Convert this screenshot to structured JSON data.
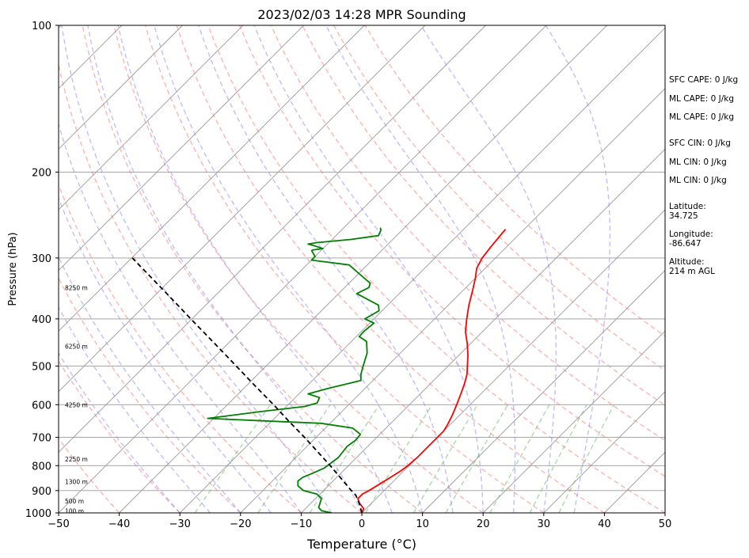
{
  "chart_data": {
    "type": "line",
    "title": "2023/02/03 14:28 MPR Sounding",
    "xlabel": "Temperature (°C)",
    "ylabel": "Pressure (hPa)",
    "xlim": [
      -50,
      50
    ],
    "ylim": [
      1000,
      100
    ],
    "y_scale": "log",
    "grid": true,
    "x_ticks": [
      "−50",
      "−40",
      "−30",
      "−20",
      "−10",
      "0",
      "10",
      "20",
      "30",
      "40",
      "50"
    ],
    "x_tick_values": [
      -50,
      -40,
      -30,
      -20,
      -10,
      0,
      10,
      20,
      30,
      40,
      50
    ],
    "y_ticks": [
      "100",
      "200",
      "300",
      "400",
      "500",
      "600",
      "700",
      "800",
      "900",
      "1000"
    ],
    "y_tick_values": [
      100,
      200,
      300,
      400,
      500,
      600,
      700,
      800,
      900,
      1000
    ],
    "skew": "skew-T log-p, isotherms inclined 45°",
    "series": [
      {
        "role": "temperature",
        "color": "#ff0000",
        "points": [
          [
            0,
            1000
          ],
          [
            -0.4,
            980
          ],
          [
            -2.0,
            955
          ],
          [
            -3.0,
            935
          ],
          [
            -3.0,
            915
          ],
          [
            -2.5,
            900
          ],
          [
            -2.0,
            880
          ],
          [
            -1.5,
            860
          ],
          [
            -1.0,
            840
          ],
          [
            -0.5,
            820
          ],
          [
            -0.2,
            800
          ],
          [
            0,
            770
          ],
          [
            0,
            740
          ],
          [
            0,
            700
          ],
          [
            0,
            680
          ],
          [
            -0.4,
            660
          ],
          [
            -1.2,
            630
          ],
          [
            -2.2,
            600
          ],
          [
            -3.3,
            570
          ],
          [
            -4.3,
            545
          ],
          [
            -5.5,
            520
          ],
          [
            -6.8,
            500
          ],
          [
            -8.5,
            475
          ],
          [
            -10.5,
            450
          ],
          [
            -12.8,
            425
          ],
          [
            -14.7,
            400
          ],
          [
            -16.6,
            375
          ],
          [
            -18.4,
            350
          ],
          [
            -20.0,
            330
          ],
          [
            -21.4,
            315
          ],
          [
            -22.2,
            300
          ],
          [
            -22.6,
            285
          ],
          [
            -22.8,
            275
          ],
          [
            -23.1,
            262
          ]
        ]
      },
      {
        "role": "dewpoint",
        "color": "#008000",
        "points": [
          [
            -5.0,
            1000
          ],
          [
            -7.0,
            990
          ],
          [
            -8.0,
            975
          ],
          [
            -8.5,
            955
          ],
          [
            -9.0,
            935
          ],
          [
            -10.5,
            915
          ],
          [
            -13.3,
            900
          ],
          [
            -15.0,
            880
          ],
          [
            -15.8,
            860
          ],
          [
            -15.6,
            845
          ],
          [
            -14.7,
            830
          ],
          [
            -13.6,
            810
          ],
          [
            -13.3,
            790
          ],
          [
            -13.0,
            770
          ],
          [
            -13.2,
            750
          ],
          [
            -13.4,
            730
          ],
          [
            -13.0,
            710
          ],
          [
            -13.2,
            690
          ],
          [
            -15.5,
            670
          ],
          [
            -21.5,
            655
          ],
          [
            -28.0,
            650
          ],
          [
            -41.0,
            640
          ],
          [
            -33.5,
            620
          ],
          [
            -27.0,
            605
          ],
          [
            -25.5,
            595
          ],
          [
            -26.0,
            580
          ],
          [
            -28.5,
            570
          ],
          [
            -26.0,
            555
          ],
          [
            -22.0,
            535
          ],
          [
            -23.0,
            520
          ],
          [
            -24.0,
            500
          ],
          [
            -25.5,
            470
          ],
          [
            -27.5,
            445
          ],
          [
            -29.5,
            435
          ],
          [
            -29.6,
            425
          ],
          [
            -29.3,
            408
          ],
          [
            -31.5,
            400
          ],
          [
            -30.5,
            385
          ],
          [
            -31.5,
            375
          ],
          [
            -37.0,
            355
          ],
          [
            -36.0,
            345
          ],
          [
            -36.5,
            338
          ],
          [
            -39.0,
            327
          ],
          [
            -43.0,
            310
          ],
          [
            -50.0,
            303
          ],
          [
            -50.0,
            298
          ],
          [
            -51.5,
            290
          ],
          [
            -51.5,
            289
          ],
          [
            -50.0,
            287
          ],
          [
            -50.5,
            286
          ],
          [
            -52.0,
            283
          ],
          [
            -53.2,
            281
          ],
          [
            -52.0,
            279
          ],
          [
            -47.0,
            275
          ],
          [
            -43.0,
            270
          ],
          [
            -43.5,
            263
          ],
          [
            -44.0,
            260
          ]
        ]
      },
      {
        "role": "parcel",
        "color": "#000000",
        "style": "dashed",
        "points": [
          [
            0,
            1000
          ],
          [
            -1.8,
            960
          ],
          [
            -3.9,
            920
          ],
          [
            -5.4,
            900
          ],
          [
            -9.1,
            850
          ],
          [
            -13.0,
            800
          ],
          [
            -17.3,
            750
          ],
          [
            -21.9,
            700
          ],
          [
            -27.0,
            650
          ],
          [
            -32.4,
            600
          ],
          [
            -38.4,
            550
          ],
          [
            -44.9,
            500
          ],
          [
            -52.1,
            450
          ],
          [
            -60.2,
            400
          ],
          [
            -69.3,
            350
          ],
          [
            -79.9,
            300
          ]
        ]
      }
    ],
    "height_labels": [
      {
        "label": "100 m",
        "p": 990
      },
      {
        "label": "500 m",
        "p": 945
      },
      {
        "label": "1300 m",
        "p": 863
      },
      {
        "label": "2250 m",
        "p": 775
      },
      {
        "label": "4250 m",
        "p": 600
      },
      {
        "label": "6250 m",
        "p": 455
      },
      {
        "label": "8250 m",
        "p": 345
      }
    ],
    "dry_adiabats_theta_c": [
      -50,
      -40,
      -30,
      -20,
      -10,
      0,
      10,
      20,
      30,
      40,
      50,
      60,
      70,
      80,
      90,
      100
    ],
    "moist_adiabats_start_c": [
      -30,
      -25,
      -20,
      -15,
      -10,
      -5,
      0,
      5,
      10,
      15,
      20,
      25,
      30,
      35
    ],
    "mixing_ratio_lines_gkg": [
      0.4,
      1,
      2,
      4,
      7,
      10,
      16,
      24,
      32
    ],
    "colors": {
      "temperature": "#ff0000",
      "dewpoint": "#008000",
      "parcel": "#000000",
      "dry_adiabat": "#ff9999",
      "moist_adiabat": "#8080ff",
      "mixing_ratio": "#66bb66",
      "isotherm": "#999999"
    }
  },
  "side_info": {
    "sfc_cape": "SFC CAPE: 0 J/kg",
    "ml_cape_1": "ML CAPE: 0 J/kg",
    "ml_cape_2": "ML CAPE: 0 J/kg",
    "sfc_cin": "SFC CIN: 0 J/kg",
    "ml_cin_1": "ML CIN: 0 J/kg",
    "ml_cin_2": "ML CIN: 0 J/kg",
    "latitude_label": "Latitude:",
    "latitude_value": "34.725",
    "longitude_label": "Longitude:",
    "longitude_value": "-86.647",
    "altitude_label": "Altitude:",
    "altitude_value": "214 m AGL"
  }
}
